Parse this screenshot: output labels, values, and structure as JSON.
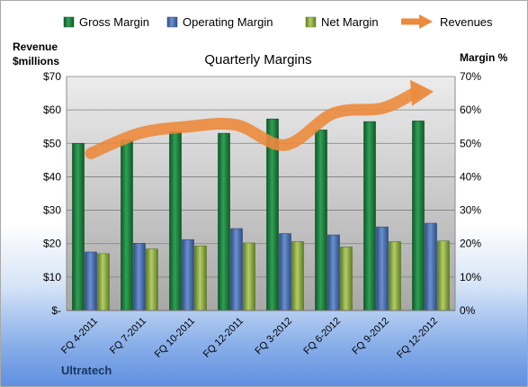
{
  "chart_data": {
    "type": "bar",
    "title": "Quarterly Margins",
    "company": "Ultratech",
    "y_left_label_line1": "Revenue",
    "y_left_label_line2": "$millions",
    "y_right_label": "Margin %",
    "categories": [
      "FQ 4-2011",
      "FQ 7-2011",
      "FQ 10-2011",
      "FQ 12-2011",
      "FQ 3-2012",
      "FQ 6-2012",
      "FQ 9-2012",
      "FQ 12-2012"
    ],
    "ylim_left": [
      0,
      70
    ],
    "ylim_right": [
      0,
      70
    ],
    "left_ticks": [
      "$-",
      "$10",
      "$20",
      "$30",
      "$40",
      "$50",
      "$60",
      "$70"
    ],
    "right_ticks": [
      "0%",
      "10%",
      "20%",
      "30%",
      "40%",
      "50%",
      "60%",
      "70%"
    ],
    "series": [
      {
        "name": "Gross Margin",
        "kind": "bar",
        "axis": "right",
        "color": "#1e7a3c",
        "values": [
          50,
          51,
          53.5,
          53,
          57.3,
          54,
          56.5,
          56.7
        ]
      },
      {
        "name": "Operating Margin",
        "kind": "bar",
        "axis": "right",
        "color": "#4a72b0",
        "values": [
          17.5,
          20.1,
          21.2,
          24.5,
          23,
          22.6,
          25,
          26.1
        ]
      },
      {
        "name": "Net Margin",
        "kind": "bar",
        "axis": "right",
        "color": "#8fae3e",
        "values": [
          17,
          18.4,
          19.3,
          20.2,
          20.6,
          19,
          20.6,
          20.8
        ]
      },
      {
        "name": "Revenues",
        "kind": "line",
        "axis": "left",
        "color": "#ec8a3d",
        "values": [
          47,
          53,
          55,
          55.5,
          49.5,
          59,
          60.5,
          65.5
        ]
      }
    ],
    "grid": true,
    "legend_position": "top"
  }
}
